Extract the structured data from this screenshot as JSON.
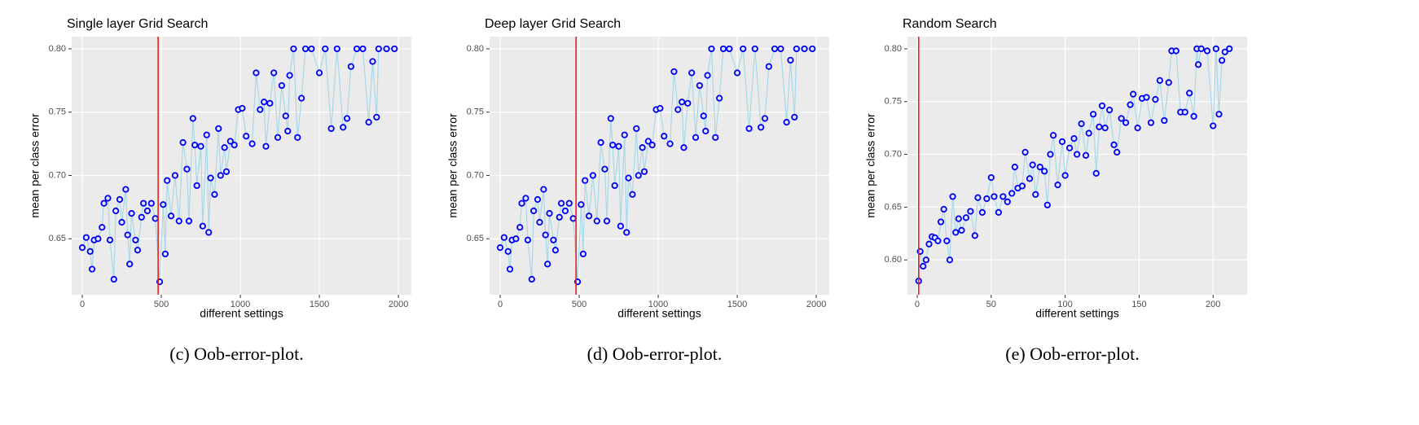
{
  "chart_data": [
    {
      "type": "line",
      "title": "Single layer Grid Search",
      "xlabel": "different settings",
      "ylabel": "mean per class error",
      "caption": "(c)  Oob-error-plot.",
      "x": [
        0,
        25,
        50,
        62,
        75,
        100,
        125,
        137,
        162,
        175,
        200,
        212,
        237,
        250,
        275,
        287,
        300,
        312,
        337,
        350,
        375,
        387,
        412,
        437,
        462,
        490,
        512,
        525,
        537,
        562,
        587,
        612,
        637,
        662,
        675,
        700,
        712,
        725,
        750,
        762,
        787,
        800,
        812,
        837,
        862,
        875,
        900,
        912,
        937,
        962,
        987,
        1012,
        1037,
        1075,
        1100,
        1125,
        1150,
        1162,
        1187,
        1212,
        1237,
        1262,
        1287,
        1300,
        1312,
        1337,
        1362,
        1387,
        1412,
        1450,
        1500,
        1537,
        1575,
        1612,
        1650,
        1675,
        1700,
        1737,
        1775,
        1812,
        1837,
        1862,
        1875,
        1925,
        1975
      ],
      "values": [
        0.643,
        0.651,
        0.64,
        0.626,
        0.649,
        0.65,
        0.659,
        0.678,
        0.682,
        0.649,
        0.618,
        0.672,
        0.681,
        0.663,
        0.689,
        0.653,
        0.63,
        0.67,
        0.649,
        0.641,
        0.667,
        0.678,
        0.672,
        0.678,
        0.666,
        0.616,
        0.677,
        0.638,
        0.696,
        0.668,
        0.7,
        0.664,
        0.726,
        0.705,
        0.664,
        0.745,
        0.724,
        0.692,
        0.723,
        0.66,
        0.732,
        0.655,
        0.698,
        0.685,
        0.737,
        0.7,
        0.722,
        0.703,
        0.727,
        0.724,
        0.752,
        0.753,
        0.731,
        0.725,
        0.781,
        0.752,
        0.758,
        0.723,
        0.757,
        0.781,
        0.73,
        0.771,
        0.747,
        0.735,
        0.779,
        0.8,
        0.73,
        0.761,
        0.8,
        0.8,
        0.781,
        0.8,
        0.737,
        0.8,
        0.738,
        0.745,
        0.786,
        0.8,
        0.8,
        0.742,
        0.79,
        0.746,
        0.8,
        0.8,
        0.8
      ],
      "color": "#0000ee",
      "line_color": "#a8d8e8",
      "vline": 480,
      "vline_color": "#e8231f",
      "xlim": [
        -67,
        2082
      ],
      "xticks": [
        0,
        500,
        1000,
        1500,
        2000
      ],
      "ylim": [
        0.6058,
        0.8096
      ],
      "yticks": [
        0.65,
        {
          "value": 0.7,
          "label": "0.70"
        },
        0.75,
        {
          "value": 0.8,
          "label": "0.80"
        }
      ],
      "grid": true
    },
    {
      "type": "line",
      "title": "Deep layer Grid Search",
      "xlabel": "different settings",
      "ylabel": "mean per class error",
      "caption": "(d)  Oob-error-plot.",
      "x": [
        0,
        25,
        50,
        62,
        75,
        100,
        125,
        137,
        162,
        175,
        200,
        212,
        237,
        250,
        275,
        287,
        300,
        312,
        337,
        350,
        375,
        387,
        412,
        437,
        462,
        490,
        512,
        525,
        537,
        562,
        587,
        612,
        637,
        662,
        675,
        700,
        712,
        725,
        750,
        762,
        787,
        800,
        812,
        837,
        862,
        875,
        900,
        912,
        937,
        962,
        987,
        1012,
        1037,
        1075,
        1100,
        1125,
        1150,
        1162,
        1187,
        1212,
        1237,
        1262,
        1287,
        1300,
        1312,
        1337,
        1362,
        1387,
        1412,
        1450,
        1500,
        1537,
        1575,
        1612,
        1650,
        1675,
        1700,
        1737,
        1775,
        1812,
        1837,
        1862,
        1875,
        1925,
        1975
      ],
      "values": [
        0.643,
        0.651,
        0.64,
        0.626,
        0.649,
        0.65,
        0.659,
        0.678,
        0.682,
        0.649,
        0.618,
        0.672,
        0.681,
        0.663,
        0.689,
        0.653,
        0.63,
        0.67,
        0.649,
        0.641,
        0.667,
        0.678,
        0.672,
        0.678,
        0.666,
        0.616,
        0.677,
        0.638,
        0.696,
        0.668,
        0.7,
        0.664,
        0.726,
        0.705,
        0.664,
        0.745,
        0.724,
        0.692,
        0.723,
        0.66,
        0.732,
        0.655,
        0.698,
        0.685,
        0.737,
        0.7,
        0.722,
        0.703,
        0.727,
        0.724,
        0.752,
        0.753,
        0.731,
        0.725,
        0.782,
        0.752,
        0.758,
        0.722,
        0.757,
        0.781,
        0.73,
        0.771,
        0.747,
        0.735,
        0.779,
        0.8,
        0.73,
        0.761,
        0.8,
        0.8,
        0.781,
        0.8,
        0.737,
        0.8,
        0.738,
        0.745,
        0.786,
        0.8,
        0.8,
        0.742,
        0.791,
        0.746,
        0.8,
        0.8,
        0.8
      ],
      "color": "#0000ee",
      "line_color": "#a8d8e8",
      "vline": 480,
      "vline_color": "#e8231f",
      "xlim": [
        -67,
        2082
      ],
      "xticks": [
        0,
        500,
        1000,
        1500,
        2000
      ],
      "ylim": [
        0.6058,
        0.8096
      ],
      "yticks": [
        0.65,
        {
          "value": 0.7,
          "label": "0.70"
        },
        0.75,
        {
          "value": 0.8,
          "label": "0.80"
        }
      ],
      "grid": true
    },
    {
      "type": "line",
      "title": "Random Search",
      "xlabel": "different settings",
      "ylabel": "mean per class error",
      "caption": "(e)  Oob-error-plot.",
      "x": [
        1,
        2,
        4,
        6,
        8,
        10,
        12,
        14,
        16,
        18,
        20,
        22,
        24,
        26,
        28,
        30,
        33,
        36,
        39,
        41,
        44,
        47,
        50,
        52,
        55,
        58,
        61,
        64,
        66,
        68,
        71,
        73,
        76,
        78,
        80,
        83,
        86,
        88,
        90,
        92,
        95,
        98,
        100,
        103,
        106,
        108,
        111,
        114,
        116,
        119,
        121,
        123,
        125,
        127,
        130,
        133,
        135,
        138,
        141,
        144,
        146,
        149,
        152,
        155,
        158,
        161,
        164,
        167,
        170,
        172,
        175,
        178,
        181,
        184,
        187,
        189,
        190,
        192,
        196,
        200,
        202,
        204,
        206,
        208,
        211
      ],
      "values": [
        0.58,
        0.608,
        0.594,
        0.6,
        0.615,
        0.622,
        0.621,
        0.618,
        0.636,
        0.648,
        0.618,
        0.6,
        0.66,
        0.626,
        0.639,
        0.628,
        0.64,
        0.646,
        0.623,
        0.659,
        0.645,
        0.658,
        0.678,
        0.66,
        0.645,
        0.66,
        0.655,
        0.663,
        0.688,
        0.668,
        0.67,
        0.702,
        0.677,
        0.69,
        0.662,
        0.688,
        0.684,
        0.652,
        0.7,
        0.718,
        0.671,
        0.712,
        0.68,
        0.706,
        0.715,
        0.7,
        0.729,
        0.699,
        0.72,
        0.738,
        0.682,
        0.726,
        0.746,
        0.725,
        0.742,
        0.709,
        0.702,
        0.734,
        0.73,
        0.747,
        0.757,
        0.725,
        0.753,
        0.754,
        0.73,
        0.752,
        0.77,
        0.732,
        0.768,
        0.798,
        0.798,
        0.74,
        0.74,
        0.758,
        0.736,
        0.8,
        0.785,
        0.8,
        0.798,
        0.727,
        0.8,
        0.738,
        0.789,
        0.797,
        0.8
      ],
      "color": "#0000ee",
      "line_color": "#a8d8e8",
      "vline": 1,
      "vline_color": "#e8231f",
      "xlim": [
        -6.6,
        223
      ],
      "xticks": [
        0,
        50,
        100,
        150,
        200
      ],
      "ylim": [
        0.567,
        0.8115
      ],
      "yticks": [
        {
          "value": 0.6,
          "label": "0.60"
        },
        0.65,
        {
          "value": 0.7,
          "label": "0.70"
        },
        0.75,
        {
          "value": 0.8,
          "label": "0.80"
        }
      ],
      "grid": true
    }
  ]
}
